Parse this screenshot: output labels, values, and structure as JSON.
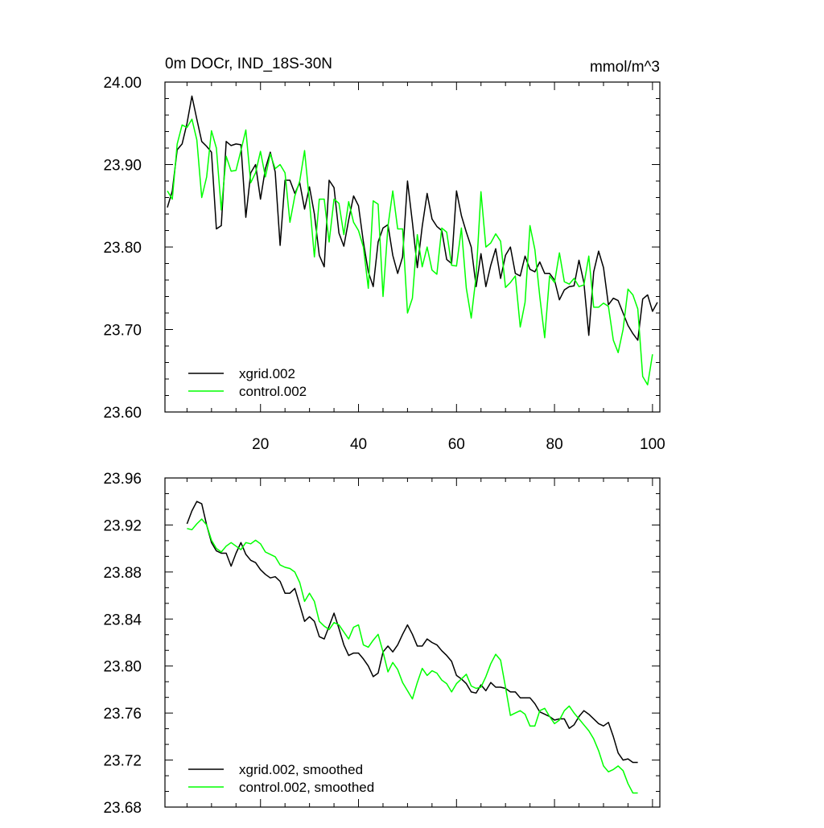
{
  "chart_data": [
    {
      "type": "line",
      "title": "0m DOCr, IND_18S-30N",
      "units": "mmol/m^3",
      "xlabel": "",
      "ylabel": "",
      "xlim": [
        0.5,
        101.5
      ],
      "ylim": [
        23.6,
        24.0
      ],
      "x_ticks": [
        20,
        40,
        60,
        80,
        100
      ],
      "y_ticks": [
        "23.60",
        "23.70",
        "23.80",
        "23.90",
        "24.00"
      ],
      "legend": "bottom-left",
      "series": [
        {
          "name": "xgrid.002",
          "color": "#000000",
          "x_start": 1,
          "values": [
            23.848,
            23.868,
            23.918,
            23.925,
            23.95,
            23.983,
            23.955,
            23.928,
            23.922,
            23.915,
            23.822,
            23.826,
            23.928,
            23.923,
            23.925,
            23.924,
            23.836,
            23.89,
            23.9,
            23.858,
            23.895,
            23.915,
            23.891,
            23.802,
            23.881,
            23.881,
            23.865,
            23.878,
            23.846,
            23.873,
            23.84,
            23.79,
            23.776,
            23.881,
            23.872,
            23.817,
            23.801,
            23.833,
            23.862,
            23.85,
            23.806,
            23.77,
            23.752,
            23.806,
            23.823,
            23.827,
            23.79,
            23.768,
            23.788,
            23.88,
            23.83,
            23.775,
            23.825,
            23.865,
            23.834,
            23.825,
            23.82,
            23.785,
            23.78,
            23.868,
            23.838,
            23.818,
            23.8,
            23.752,
            23.792,
            23.752,
            23.778,
            23.798,
            23.762,
            23.79,
            23.8,
            23.768,
            23.765,
            23.789,
            23.773,
            23.77,
            23.782,
            23.768,
            23.768,
            23.76,
            23.736,
            23.748,
            23.752,
            23.753,
            23.784,
            23.757,
            23.693,
            23.77,
            23.795,
            23.775,
            23.73,
            23.738,
            23.735,
            23.72,
            23.705,
            23.695,
            23.687,
            23.737,
            23.742,
            23.722,
            23.733
          ]
        },
        {
          "name": "control.002",
          "color": "#00ff00",
          "x_start": 1,
          "values": [
            23.868,
            23.858,
            23.925,
            23.948,
            23.945,
            23.955,
            23.93,
            23.86,
            23.885,
            23.941,
            23.92,
            23.845,
            23.91,
            23.892,
            23.893,
            23.917,
            23.942,
            23.878,
            23.89,
            23.916,
            23.885,
            23.913,
            23.895,
            23.9,
            23.89,
            23.83,
            23.862,
            23.88,
            23.917,
            23.855,
            23.788,
            23.858,
            23.858,
            23.806,
            23.858,
            23.853,
            23.815,
            23.855,
            23.83,
            23.82,
            23.8,
            23.75,
            23.856,
            23.852,
            23.74,
            23.825,
            23.868,
            23.822,
            23.822,
            23.72,
            23.738,
            23.815,
            23.776,
            23.8,
            23.772,
            23.767,
            23.823,
            23.818,
            23.778,
            23.777,
            23.823,
            23.75,
            23.714,
            23.765,
            23.867,
            23.8,
            23.805,
            23.816,
            23.807,
            23.751,
            23.757,
            23.765,
            23.703,
            23.733,
            23.826,
            23.797,
            23.74,
            23.69,
            23.765,
            23.757,
            23.793,
            23.758,
            23.755,
            23.762,
            23.752,
            23.754,
            23.789,
            23.727,
            23.727,
            23.732,
            23.728,
            23.687,
            23.672,
            23.7,
            23.749,
            23.742,
            23.725,
            23.643,
            23.633,
            23.67
          ]
        }
      ]
    },
    {
      "type": "line",
      "title": "",
      "xlabel": "",
      "ylabel": "",
      "xlim": [
        0.5,
        101.5
      ],
      "ylim": [
        23.68,
        23.96
      ],
      "x_ticks": [
        20,
        40,
        60,
        80,
        100
      ],
      "y_ticks": [
        "23.68",
        "23.72",
        "23.76",
        "23.80",
        "23.84",
        "23.88",
        "23.92",
        "23.96"
      ],
      "legend": "bottom-left",
      "series": [
        {
          "name": "xgrid.002, smoothed",
          "color": "#000000",
          "x_start": 5,
          "values": [
            23.921,
            23.932,
            23.94,
            23.938,
            23.92,
            23.905,
            23.898,
            23.896,
            23.896,
            23.885,
            23.896,
            23.905,
            23.895,
            23.89,
            23.888,
            23.882,
            23.878,
            23.875,
            23.876,
            23.872,
            23.862,
            23.862,
            23.866,
            23.852,
            23.838,
            23.842,
            23.838,
            23.825,
            23.823,
            23.834,
            23.845,
            23.832,
            23.818,
            23.809,
            23.811,
            23.811,
            23.806,
            23.8,
            23.791,
            23.794,
            23.812,
            23.817,
            23.812,
            23.818,
            23.827,
            23.835,
            23.827,
            23.817,
            23.817,
            23.823,
            23.82,
            23.818,
            23.813,
            23.809,
            23.804,
            23.792,
            23.789,
            23.785,
            23.778,
            23.777,
            23.784,
            23.779,
            23.786,
            23.782,
            23.782,
            23.781,
            23.778,
            23.778,
            23.773,
            23.773,
            23.773,
            23.768,
            23.761,
            23.759,
            23.757,
            23.754,
            23.755,
            23.755,
            23.747,
            23.75,
            23.757,
            23.762,
            23.759,
            23.755,
            23.751,
            23.749,
            23.752,
            23.74,
            23.726,
            23.72,
            23.721,
            23.718,
            23.718
          ]
        },
        {
          "name": "control.002, smoothed",
          "color": "#00ff00",
          "x_start": 5,
          "values": [
            23.917,
            23.916,
            23.921,
            23.925,
            23.92,
            23.907,
            23.9,
            23.897,
            23.902,
            23.905,
            23.902,
            23.899,
            23.905,
            23.904,
            23.907,
            23.904,
            23.897,
            23.895,
            23.893,
            23.886,
            23.884,
            23.883,
            23.88,
            23.871,
            23.855,
            23.862,
            23.855,
            23.838,
            23.834,
            23.831,
            23.837,
            23.835,
            23.829,
            23.823,
            23.833,
            23.835,
            23.818,
            23.816,
            23.822,
            23.827,
            23.812,
            23.795,
            23.803,
            23.797,
            23.786,
            23.779,
            23.772,
            23.786,
            23.798,
            23.792,
            23.796,
            23.794,
            23.788,
            23.785,
            23.778,
            23.785,
            23.789,
            23.793,
            23.783,
            23.781,
            23.782,
            23.791,
            23.802,
            23.81,
            23.805,
            23.782,
            23.758,
            23.76,
            23.762,
            23.759,
            23.749,
            23.749,
            23.762,
            23.764,
            23.757,
            23.751,
            23.754,
            23.762,
            23.766,
            23.76,
            23.755,
            23.75,
            23.745,
            23.738,
            23.728,
            23.715,
            23.71,
            23.712,
            23.715,
            23.711,
            23.7,
            23.692,
            23.692
          ]
        }
      ]
    }
  ]
}
